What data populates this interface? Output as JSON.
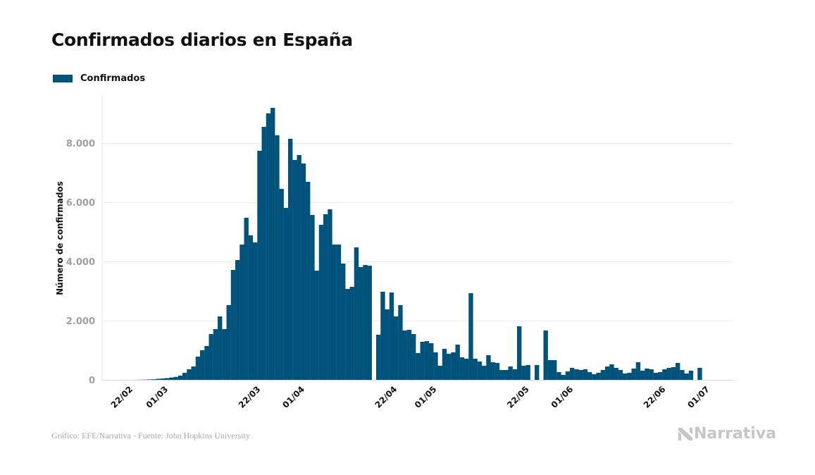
{
  "chart_data": {
    "type": "bar",
    "title": "Confirmados diarios en España",
    "xlabel": "",
    "ylabel": "Número de confirmados",
    "ylim": [
      0,
      9500
    ],
    "yticks": [
      0,
      2000,
      4000,
      6000,
      8000
    ],
    "ytick_labels": [
      "0",
      "2.000",
      "4.000",
      "6.000",
      "8.000"
    ],
    "grid": true,
    "legend_position": "top-left",
    "x_start": "22/02",
    "xtick_labels": [
      {
        "label": "22/02",
        "day": 0
      },
      {
        "label": "01/03",
        "day": 8
      },
      {
        "label": "22/03",
        "day": 29
      },
      {
        "label": "01/04",
        "day": 39
      },
      {
        "label": "22/04",
        "day": 60
      },
      {
        "label": "01/05",
        "day": 69
      },
      {
        "label": "22/05",
        "day": 90
      },
      {
        "label": "01/06",
        "day": 100
      },
      {
        "label": "22/06",
        "day": 121
      },
      {
        "label": "01/07",
        "day": 131
      }
    ],
    "series": [
      {
        "name": "Confirmados",
        "color": "#02537b",
        "values": [
          0,
          2,
          5,
          8,
          15,
          20,
          35,
          45,
          60,
          80,
          100,
          143,
          238,
          357,
          452,
          786,
          1000,
          1143,
          1548,
          1714,
          2143,
          1714,
          2524,
          3714,
          4048,
          4571,
          5476,
          4881,
          4643,
          7738,
          8548,
          9000,
          9190,
          8262,
          6452,
          5810,
          8143,
          7429,
          7595,
          7310,
          6690,
          5571,
          3690,
          5238,
          5595,
          5762,
          4571,
          4571,
          3929,
          3071,
          3143,
          4476,
          3810,
          3881,
          3857,
          0,
          1524,
          2976,
          2381,
          2952,
          2143,
          2524,
          1667,
          1690,
          1548,
          905,
          1286,
          1310,
          1238,
          929,
          476,
          1048,
          881,
          929,
          1190,
          762,
          714,
          2929,
          714,
          619,
          476,
          833,
          595,
          571,
          333,
          333,
          452,
          357,
          1810,
          476,
          500,
          0,
          500,
          0,
          1667,
          667,
          667,
          262,
          167,
          286,
          405,
          357,
          333,
          357,
          262,
          190,
          238,
          333,
          452,
          524,
          405,
          333,
          214,
          238,
          381,
          595,
          310,
          381,
          357,
          238,
          262,
          357,
          405,
          429,
          571,
          333,
          214,
          310,
          0,
          405
        ]
      }
    ]
  },
  "legend": {
    "label": "Confirmados"
  },
  "footer": {
    "source": "Gráfico: EFE/Narrativa - Fuente: John Hopkins University"
  },
  "logo": {
    "text": "Narrativa"
  }
}
